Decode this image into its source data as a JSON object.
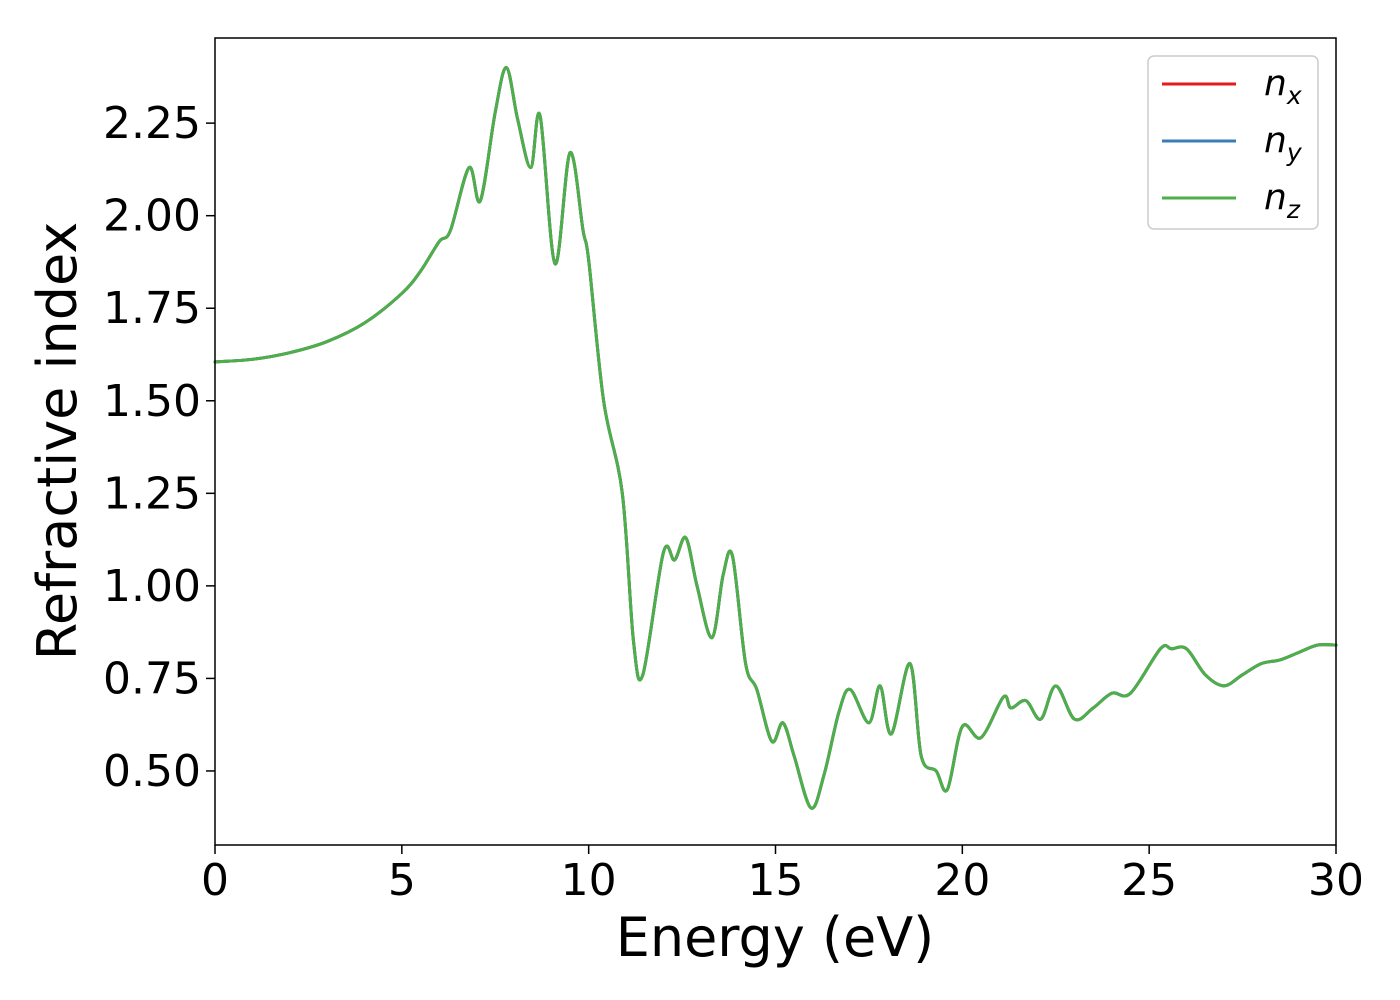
{
  "chart_data": {
    "type": "line",
    "title": "",
    "xlabel": "Energy (eV)",
    "ylabel": "Refractive index",
    "xlim": [
      0,
      30
    ],
    "ylim": [
      0.3,
      2.48
    ],
    "xticks": [
      0,
      5,
      10,
      15,
      20,
      25,
      30
    ],
    "xtick_labels": [
      "0",
      "5",
      "10",
      "15",
      "20",
      "25",
      "30"
    ],
    "yticks": [
      0.5,
      0.75,
      1.0,
      1.25,
      1.5,
      1.75,
      2.0,
      2.25
    ],
    "ytick_labels": [
      "0.50",
      "0.75",
      "1.00",
      "1.25",
      "1.50",
      "1.75",
      "2.00",
      "2.25"
    ],
    "grid": false,
    "legend_position": "top-right",
    "x": [
      0,
      1,
      2,
      3,
      4,
      5,
      5.5,
      6,
      6.3,
      6.8,
      7.1,
      7.5,
      7.8,
      8.1,
      8.45,
      8.7,
      9.1,
      9.5,
      9.85,
      10.0,
      10.4,
      10.9,
      11.2,
      11.45,
      12.0,
      12.3,
      12.6,
      12.9,
      13.3,
      13.6,
      13.85,
      14.2,
      14.5,
      14.9,
      15.2,
      15.5,
      15.95,
      16.3,
      16.7,
      17.0,
      17.5,
      17.8,
      18.1,
      18.6,
      18.9,
      19.3,
      19.6,
      20.0,
      20.5,
      21.1,
      21.3,
      21.7,
      22.1,
      22.5,
      23.0,
      23.5,
      24.0,
      24.5,
      25.3,
      25.6,
      26.0,
      26.5,
      27.0,
      27.5,
      28.0,
      28.5,
      29.0,
      29.5,
      30.0
    ],
    "series": [
      {
        "name": "n_x",
        "label_base": "n",
        "label_sub": "x",
        "color": "#e41a1c",
        "values": [
          1.605,
          1.612,
          1.63,
          1.66,
          1.71,
          1.79,
          1.85,
          1.93,
          1.96,
          2.13,
          2.04,
          2.28,
          2.4,
          2.26,
          2.13,
          2.27,
          1.87,
          2.17,
          1.96,
          1.88,
          1.5,
          1.25,
          0.85,
          0.76,
          1.09,
          1.07,
          1.13,
          1.0,
          0.86,
          1.03,
          1.08,
          0.79,
          0.72,
          0.58,
          0.63,
          0.54,
          0.4,
          0.49,
          0.66,
          0.72,
          0.63,
          0.73,
          0.6,
          0.79,
          0.54,
          0.5,
          0.45,
          0.62,
          0.59,
          0.7,
          0.67,
          0.69,
          0.64,
          0.73,
          0.64,
          0.67,
          0.71,
          0.71,
          0.83,
          0.83,
          0.83,
          0.76,
          0.73,
          0.76,
          0.79,
          0.8,
          0.82,
          0.84,
          0.84
        ]
      },
      {
        "name": "n_y",
        "label_base": "n",
        "label_sub": "y",
        "color": "#377eb8",
        "values": [
          1.605,
          1.612,
          1.63,
          1.66,
          1.71,
          1.79,
          1.85,
          1.93,
          1.96,
          2.13,
          2.04,
          2.28,
          2.4,
          2.26,
          2.13,
          2.27,
          1.87,
          2.17,
          1.96,
          1.88,
          1.5,
          1.25,
          0.85,
          0.76,
          1.09,
          1.07,
          1.13,
          1.0,
          0.86,
          1.03,
          1.08,
          0.79,
          0.72,
          0.58,
          0.63,
          0.54,
          0.4,
          0.49,
          0.66,
          0.72,
          0.63,
          0.73,
          0.6,
          0.79,
          0.54,
          0.5,
          0.45,
          0.62,
          0.59,
          0.7,
          0.67,
          0.69,
          0.64,
          0.73,
          0.64,
          0.67,
          0.71,
          0.71,
          0.83,
          0.83,
          0.83,
          0.76,
          0.73,
          0.76,
          0.79,
          0.8,
          0.82,
          0.84,
          0.84
        ]
      },
      {
        "name": "n_z",
        "label_base": "n",
        "label_sub": "z",
        "color": "#4daf4a",
        "values": [
          1.605,
          1.612,
          1.63,
          1.66,
          1.71,
          1.79,
          1.85,
          1.93,
          1.96,
          2.13,
          2.04,
          2.28,
          2.4,
          2.26,
          2.13,
          2.27,
          1.87,
          2.17,
          1.96,
          1.88,
          1.5,
          1.25,
          0.85,
          0.76,
          1.09,
          1.07,
          1.13,
          1.0,
          0.86,
          1.03,
          1.08,
          0.79,
          0.72,
          0.58,
          0.63,
          0.54,
          0.4,
          0.49,
          0.66,
          0.72,
          0.63,
          0.73,
          0.6,
          0.79,
          0.54,
          0.5,
          0.45,
          0.62,
          0.59,
          0.7,
          0.67,
          0.69,
          0.64,
          0.73,
          0.64,
          0.67,
          0.71,
          0.71,
          0.83,
          0.83,
          0.83,
          0.76,
          0.73,
          0.76,
          0.79,
          0.8,
          0.82,
          0.84,
          0.84
        ]
      }
    ]
  }
}
